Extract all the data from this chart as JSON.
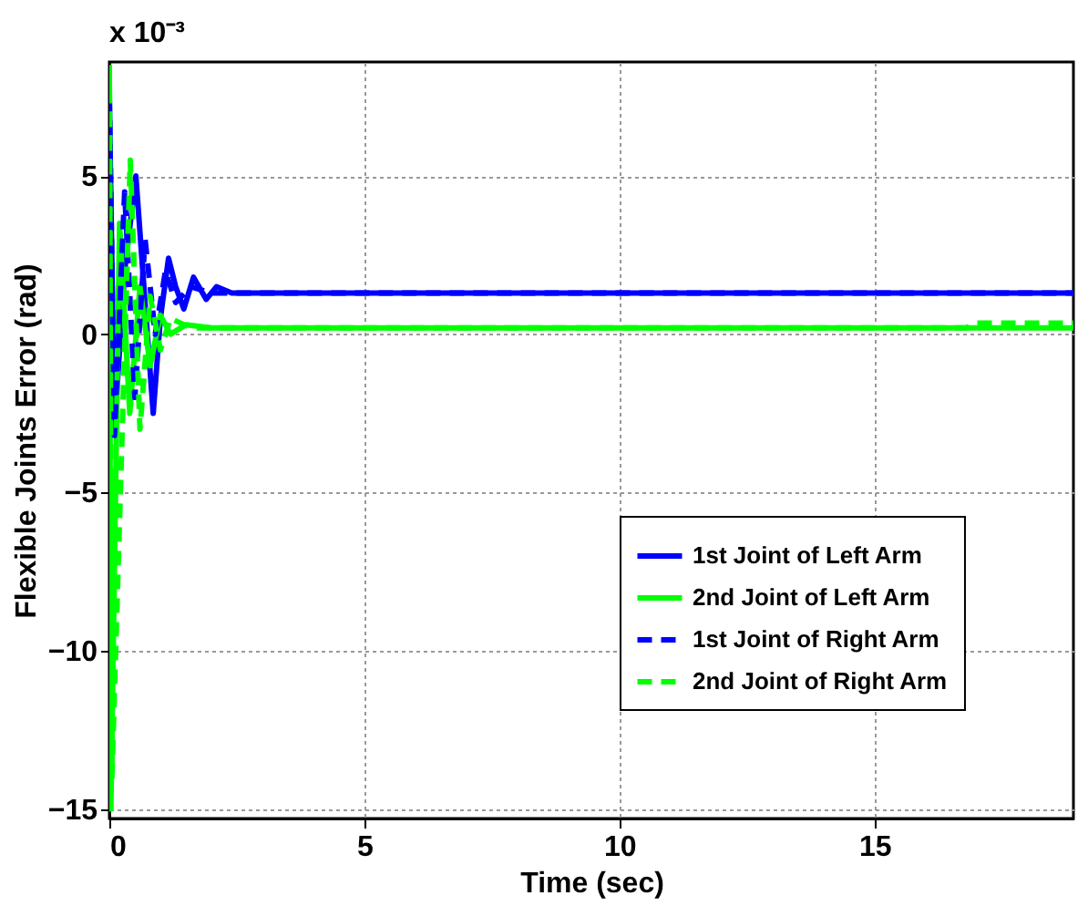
{
  "chart_data": {
    "type": "line",
    "xlabel": "Time (sec)",
    "ylabel": "Flexible Joints Error (rad)",
    "annotations": [
      "x 10⁻³"
    ],
    "xlim": [
      0,
      18.9
    ],
    "ylim": [
      -15.3,
      8.6
    ],
    "xticks": [
      0,
      5,
      10,
      15
    ],
    "yticks": [
      -15,
      -10,
      -5,
      0,
      5
    ],
    "grid": true,
    "legend": "bottom right",
    "series": [
      {
        "name": "1st Joint of Left Arm",
        "color": "#0000ff",
        "line_style": "solid",
        "x": [
          0,
          0.1,
          0.3,
          0.52,
          0.7,
          0.86,
          1.0,
          1.16,
          1.3,
          1.46,
          1.65,
          1.9,
          2.1,
          2.4,
          18.9
        ],
        "values": [
          7.5,
          -3,
          2,
          5,
          1,
          -2.5,
          0.5,
          2.4,
          1.5,
          0.8,
          1.8,
          1.1,
          1.5,
          1.3,
          1.3
        ]
      },
      {
        "name": "2nd Joint of Left Arm",
        "color": "#00ff00",
        "line_style": "solid",
        "x": [
          0,
          0.03,
          0.2,
          0.4,
          0.6,
          0.8,
          1.0,
          1.2,
          1.5,
          2.0,
          18.9
        ],
        "values": [
          8.5,
          -15,
          3.5,
          -2.5,
          1.5,
          -1,
          0.6,
          0,
          0.3,
          0.2,
          0.2
        ]
      },
      {
        "name": "1st Joint of Right Arm",
        "color": "#0000ff",
        "line_style": "dashed",
        "x": [
          0,
          0.1,
          0.3,
          0.5,
          0.7,
          0.9,
          1.1,
          1.3,
          1.6,
          2.0,
          18.9
        ],
        "values": [
          7.5,
          -3.2,
          4.5,
          -2,
          3,
          0,
          2,
          1,
          1.5,
          1.3,
          1.3
        ]
      },
      {
        "name": "2nd Joint of Right Arm",
        "color": "#00ff00",
        "line_style": "dashed",
        "x": [
          0,
          0.05,
          0.41,
          0.6,
          0.8,
          1.0,
          1.2,
          1.6,
          16.8,
          17.0,
          18.9
        ],
        "values": [
          8.5,
          -14,
          5.5,
          -3,
          1.2,
          -0.5,
          0.5,
          0.2,
          0.2,
          0.35,
          0.35
        ]
      }
    ]
  }
}
